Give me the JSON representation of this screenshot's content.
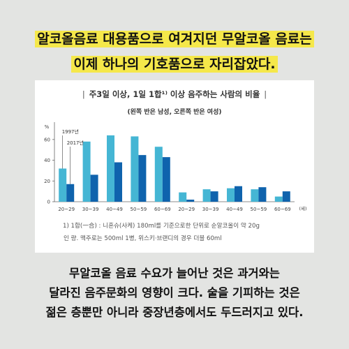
{
  "headline": {
    "line1": "알코올음료 대용품으로 여겨지던 무알코올 음료는",
    "line2": "이제 하나의 기호품으로 자리잡았다."
  },
  "chart_data": {
    "type": "bar",
    "title": "주3일 이상, 1일 1합¹⁾ 이상 음주하는 사람의 비율",
    "subtitle": "(왼쪽 반은 남성, 오른쪽 반은 여성)",
    "ylabel": "%",
    "xlabel": "",
    "x_unit": "(세)",
    "ylim": [
      0,
      70
    ],
    "yticks": [
      0,
      20,
      40,
      60
    ],
    "grid": false,
    "categories": [
      "20~29",
      "30~39",
      "40~49",
      "50~59",
      "60~69",
      "20~29",
      "30~39",
      "40~49",
      "50~59",
      "60~69"
    ],
    "series": [
      {
        "name": "1997년",
        "color": "#45b6d4",
        "values": [
          32,
          58,
          64,
          63,
          53,
          9,
          12,
          13,
          12,
          5
        ]
      },
      {
        "name": "2017년",
        "color": "#0f63ad",
        "values": [
          17,
          26,
          38,
          45,
          43,
          2,
          10,
          15,
          14,
          10
        ]
      }
    ]
  },
  "footnote": {
    "line1": "1) 1합(一合) : 니혼슈(사케) 180ml를 기준으로한 단위로 순알코올이 약 20g",
    "line2": "인 량. 맥주로는 500ml 1병, 위스키·브랜디의 경우 더블 60ml"
  },
  "body": {
    "line1": "무알코올 음료 수요가 늘어난 것은 과거와는",
    "line2": "달라진 음주문화의 영향이 크다. 술을 기피하는 것은",
    "line3": "젊은 층뿐만 아니라 중장년층에서도 두드러지고 있다."
  }
}
